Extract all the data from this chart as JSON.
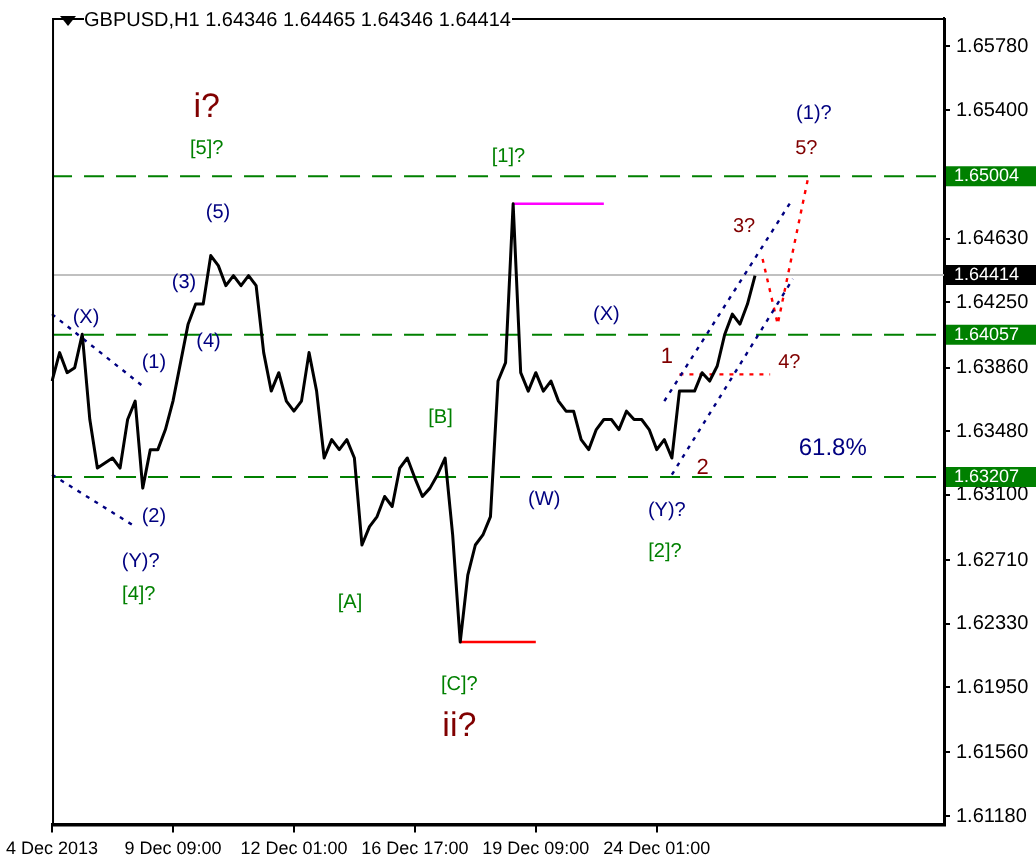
{
  "chart_data": {
    "type": "line",
    "title": "GBPUSD,H1 1.64346 1.64465 1.64346 1.64414",
    "categories": [
      "4 Dec 2013",
      null,
      null,
      null,
      null,
      null,
      null,
      null,
      null,
      null,
      null,
      null,
      null,
      null,
      null,
      null,
      "9 Dec 09:00",
      null,
      null,
      null,
      null,
      null,
      null,
      null,
      null,
      null,
      null,
      null,
      null,
      null,
      null,
      null,
      "12 Dec 01:00",
      null,
      null,
      null,
      null,
      null,
      null,
      null,
      null,
      null,
      null,
      null,
      null,
      null,
      null,
      null,
      "16 Dec 17:00",
      null,
      null,
      null,
      null,
      null,
      null,
      null,
      null,
      null,
      null,
      null,
      null,
      null,
      null,
      null,
      "19 Dec 09:00",
      null,
      null,
      null,
      null,
      null,
      null,
      null,
      null,
      null,
      null,
      null,
      null,
      null,
      null,
      null,
      "24 Dec 01:00",
      null,
      null,
      null,
      null,
      null,
      null,
      null,
      null,
      null,
      null,
      null,
      null,
      null,
      null,
      null,
      null,
      null,
      null,
      null,
      null,
      null,
      null,
      null,
      null,
      null,
      null,
      null,
      null,
      null,
      null,
      null,
      null,
      null,
      null,
      null,
      null,
      null,
      null
    ],
    "ylim": [
      1.6113,
      1.6595
    ],
    "yticks": [
      {
        "value": 1.6118,
        "label": "1.61180"
      },
      {
        "value": 1.6156,
        "label": "1.61560"
      },
      {
        "value": 1.6195,
        "label": "1.61950"
      },
      {
        "value": 1.6233,
        "label": "1.62330"
      },
      {
        "value": 1.6271,
        "label": "1.62710"
      },
      {
        "value": 1.631,
        "label": "1.63100"
      },
      {
        "value": 1.6348,
        "label": "1.63480"
      },
      {
        "value": 1.6386,
        "label": "1.63860"
      },
      {
        "value": 1.6425,
        "label": "1.64250"
      },
      {
        "value": 1.6463,
        "label": "1.64630"
      },
      {
        "value": 1.654,
        "label": "1.65400"
      },
      {
        "value": 1.6578,
        "label": "1.65780"
      }
    ],
    "grid": false,
    "legend": false,
    "series": [
      {
        "color": "#000000",
        "values": [
          1.6378,
          1.6395,
          1.6383,
          1.6386,
          1.6406,
          1.6355,
          1.6326,
          1.6329,
          1.6332,
          1.6326,
          1.6355,
          1.6366,
          1.6314,
          1.6337,
          1.6337,
          1.6349,
          1.6366,
          1.6389,
          1.6412,
          1.6424,
          1.6424,
          1.6453,
          1.6447,
          1.6435,
          1.6441,
          1.6435,
          1.6441,
          1.6435,
          1.6395,
          1.6372,
          1.6383,
          1.6366,
          1.636,
          1.6366,
          1.6395,
          1.6372,
          1.6332,
          1.6343,
          1.6337,
          1.6343,
          1.6332,
          1.628,
          1.6291,
          1.6297,
          1.6309,
          1.6303,
          1.6326,
          1.6332,
          1.632,
          1.6309,
          1.6314,
          1.6322,
          1.6332,
          1.6286,
          1.6222,
          1.6262,
          1.628,
          1.6286,
          1.6297,
          1.6378,
          1.6389,
          1.6484,
          1.6383,
          1.6372,
          1.6383,
          1.6372,
          1.6378,
          1.6366,
          1.636,
          1.636,
          1.6343,
          1.6337,
          1.6349,
          1.6355,
          1.6355,
          1.6349,
          1.636,
          1.6355,
          1.6355,
          1.6349,
          1.6337,
          1.6343,
          1.6332,
          1.6372,
          1.6372,
          1.6372,
          1.6383,
          1.6378,
          1.6387,
          1.6406,
          1.6418,
          1.6412,
          1.6424,
          1.6441,
          null,
          null,
          null,
          null,
          null,
          null,
          null,
          null,
          null,
          null,
          null,
          null,
          null,
          null,
          null,
          null,
          null,
          null,
          null,
          null,
          null,
          null,
          null,
          null,
          null
        ]
      },
      {
        "color": "#ff00ff",
        "values": [
          null,
          null,
          null,
          null,
          null,
          null,
          null,
          null,
          null,
          null,
          null,
          null,
          null,
          null,
          null,
          null,
          null,
          null,
          null,
          null,
          null,
          null,
          null,
          null,
          null,
          null,
          null,
          null,
          null,
          null,
          null,
          null,
          null,
          null,
          null,
          null,
          null,
          null,
          null,
          null,
          null,
          null,
          null,
          null,
          null,
          null,
          null,
          null,
          null,
          null,
          null,
          null,
          null,
          null,
          null,
          null,
          null,
          null,
          null,
          null,
          null,
          1.6484,
          null,
          null,
          null,
          null,
          null,
          null,
          null,
          null,
          null,
          null,
          null,
          1.6484,
          null,
          null,
          null,
          null,
          null,
          null,
          null,
          null,
          null,
          null,
          null,
          null,
          null,
          null,
          null,
          null,
          null,
          null,
          null,
          null,
          null,
          null,
          null,
          null,
          null,
          null,
          null,
          null,
          null,
          null,
          null,
          null,
          null,
          null,
          null,
          null,
          null,
          null,
          null,
          null,
          null,
          null,
          null,
          null,
          null
        ]
      },
      {
        "color": "#ff0000",
        "values": [
          null,
          null,
          null,
          null,
          null,
          null,
          null,
          null,
          null,
          null,
          null,
          null,
          null,
          null,
          null,
          null,
          null,
          null,
          null,
          null,
          null,
          null,
          null,
          null,
          null,
          null,
          null,
          null,
          null,
          null,
          null,
          null,
          null,
          null,
          null,
          null,
          null,
          null,
          null,
          null,
          null,
          null,
          null,
          null,
          null,
          null,
          null,
          null,
          null,
          null,
          null,
          null,
          null,
          null,
          1.6222,
          null,
          null,
          null,
          null,
          null,
          null,
          null,
          null,
          null,
          1.6222,
          null,
          null,
          null,
          null,
          null,
          null,
          null,
          null,
          null,
          null,
          null,
          null,
          null,
          null,
          null,
          null,
          null,
          null,
          null,
          null,
          null,
          null,
          null,
          null,
          null,
          null,
          null,
          null,
          null,
          null,
          null,
          null,
          null,
          null,
          null,
          null,
          null,
          null,
          null,
          null,
          null,
          null,
          null,
          null,
          null,
          null,
          null,
          null,
          null,
          null,
          null,
          null,
          null,
          null
        ]
      },
      {
        "color": "#000080",
        "line_style": "dotted",
        "values": [
          1.6418,
          null,
          null,
          null,
          null,
          null,
          null,
          null,
          null,
          null,
          null,
          null,
          1.6375,
          null,
          null,
          null,
          null,
          null,
          null,
          null,
          null,
          null,
          null,
          null,
          null,
          null,
          null,
          null,
          null,
          null,
          null,
          null,
          null,
          null,
          null,
          null,
          null,
          null,
          null,
          null,
          null,
          null,
          null,
          null,
          null,
          null,
          null,
          null,
          null,
          null,
          null,
          null,
          null,
          null,
          null,
          null,
          null,
          null,
          null,
          null,
          null,
          null,
          null,
          null,
          null,
          null,
          null,
          null,
          null,
          null,
          null,
          null,
          null,
          null,
          null,
          null,
          null,
          null,
          null,
          null,
          null,
          null,
          null,
          null,
          null,
          null,
          null,
          null,
          null,
          null,
          null,
          null,
          null,
          null,
          null,
          null,
          null,
          null,
          null,
          null,
          null,
          null,
          null,
          null,
          null,
          null,
          null,
          null,
          null,
          null,
          null,
          null,
          null,
          null,
          null,
          null,
          null,
          null,
          null
        ]
      },
      {
        "color": "#000080",
        "line_style": "dotted",
        "values": [
          1.6322,
          null,
          null,
          null,
          null,
          null,
          null,
          null,
          null,
          null,
          null,
          1.6291,
          null,
          null,
          null,
          null,
          null,
          null,
          null,
          null,
          null,
          null,
          null,
          null,
          null,
          null,
          null,
          null,
          null,
          null,
          null,
          null,
          null,
          null,
          null,
          null,
          null,
          null,
          null,
          null,
          null,
          null,
          null,
          null,
          null,
          null,
          null,
          null,
          null,
          null,
          null,
          null,
          null,
          null,
          null,
          null,
          null,
          null,
          null,
          null,
          null,
          null,
          null,
          null,
          null,
          null,
          null,
          null,
          null,
          null,
          null,
          null,
          null,
          null,
          null,
          null,
          null,
          null,
          null,
          null,
          null,
          null,
          null,
          null,
          null,
          null,
          null,
          null,
          null,
          null,
          null,
          null,
          null,
          null,
          null,
          null,
          null,
          null,
          null,
          null,
          null,
          null,
          null,
          null,
          null,
          null,
          null,
          null,
          null,
          null,
          null,
          null,
          null,
          null,
          null,
          null,
          null,
          null,
          null
        ]
      },
      {
        "color": "#000080",
        "line_style": "dotted",
        "values": [
          null,
          null,
          null,
          null,
          null,
          null,
          null,
          null,
          null,
          null,
          null,
          null,
          null,
          null,
          null,
          null,
          null,
          null,
          null,
          null,
          null,
          null,
          null,
          null,
          null,
          null,
          null,
          null,
          null,
          null,
          null,
          null,
          null,
          null,
          null,
          null,
          null,
          null,
          null,
          null,
          null,
          null,
          null,
          null,
          null,
          null,
          null,
          null,
          null,
          null,
          null,
          null,
          null,
          null,
          null,
          null,
          null,
          null,
          null,
          null,
          null,
          null,
          null,
          null,
          null,
          null,
          null,
          null,
          null,
          null,
          null,
          null,
          null,
          null,
          null,
          null,
          null,
          null,
          null,
          null,
          null,
          1.6366,
          null,
          null,
          null,
          null,
          null,
          null,
          null,
          null,
          null,
          null,
          null,
          null,
          null,
          null,
          null,
          null,
          1.6487,
          null,
          null,
          null,
          null,
          null,
          null,
          null,
          null,
          null,
          null,
          null,
          null,
          null,
          null,
          null,
          null,
          null,
          null,
          null,
          null
        ]
      },
      {
        "color": "#000080",
        "line_style": "dotted",
        "values": [
          null,
          null,
          null,
          null,
          null,
          null,
          null,
          null,
          null,
          null,
          null,
          null,
          null,
          null,
          null,
          null,
          null,
          null,
          null,
          null,
          null,
          null,
          null,
          null,
          null,
          null,
          null,
          null,
          null,
          null,
          null,
          null,
          null,
          null,
          null,
          null,
          null,
          null,
          null,
          null,
          null,
          null,
          null,
          null,
          null,
          null,
          null,
          null,
          null,
          null,
          null,
          null,
          null,
          null,
          null,
          null,
          null,
          null,
          null,
          null,
          null,
          null,
          null,
          null,
          null,
          null,
          null,
          null,
          null,
          null,
          null,
          null,
          null,
          null,
          null,
          null,
          null,
          null,
          null,
          null,
          null,
          null,
          1.6322,
          null,
          null,
          null,
          null,
          null,
          null,
          null,
          null,
          null,
          null,
          null,
          null,
          null,
          null,
          null,
          1.6439,
          null,
          null,
          null,
          null,
          null,
          null,
          null,
          null,
          null,
          null,
          null,
          null,
          null,
          null,
          null,
          null,
          null,
          null,
          null,
          null
        ]
      },
      {
        "color": "#ff0000",
        "line_style": "dotted",
        "values": [
          null,
          null,
          null,
          null,
          null,
          null,
          null,
          null,
          null,
          null,
          null,
          null,
          null,
          null,
          null,
          null,
          null,
          null,
          null,
          null,
          null,
          null,
          null,
          null,
          null,
          null,
          null,
          null,
          null,
          null,
          null,
          null,
          null,
          null,
          null,
          null,
          null,
          null,
          null,
          null,
          null,
          null,
          null,
          null,
          null,
          null,
          null,
          null,
          null,
          null,
          null,
          null,
          null,
          null,
          null,
          null,
          null,
          null,
          null,
          null,
          null,
          null,
          null,
          null,
          null,
          null,
          null,
          null,
          null,
          null,
          null,
          null,
          null,
          null,
          null,
          null,
          null,
          null,
          null,
          null,
          null,
          null,
          null,
          1.6382,
          null,
          null,
          null,
          null,
          null,
          null,
          null,
          null,
          null,
          null,
          null,
          1.6382,
          null,
          null,
          null,
          null,
          null,
          null,
          null,
          null,
          null,
          null,
          null,
          null,
          null,
          null,
          null,
          null,
          null,
          null,
          null,
          null,
          null,
          null,
          null
        ]
      },
      {
        "color": "#ff0000",
        "line_style": "dotted",
        "values": [
          null,
          null,
          null,
          null,
          null,
          null,
          null,
          null,
          null,
          null,
          null,
          null,
          null,
          null,
          null,
          null,
          null,
          null,
          null,
          null,
          null,
          null,
          null,
          null,
          null,
          null,
          null,
          null,
          null,
          null,
          null,
          null,
          null,
          null,
          null,
          null,
          null,
          null,
          null,
          null,
          null,
          null,
          null,
          null,
          null,
          null,
          null,
          null,
          null,
          null,
          null,
          null,
          null,
          null,
          null,
          null,
          null,
          null,
          null,
          null,
          null,
          null,
          null,
          null,
          null,
          null,
          null,
          null,
          null,
          null,
          null,
          null,
          null,
          null,
          null,
          null,
          null,
          null,
          null,
          null,
          null,
          null,
          null,
          null,
          null,
          null,
          null,
          null,
          null,
          null,
          null,
          null,
          null,
          null,
          1.6451,
          null,
          1.6412,
          null,
          null,
          null,
          1.6499,
          null,
          null,
          null,
          null,
          null,
          null,
          null,
          null,
          null,
          null,
          null,
          null,
          null,
          null,
          null,
          null,
          null,
          null
        ]
      }
    ],
    "ref_lines": [
      {
        "axis": "y",
        "value": 1.65004,
        "label": "1.65004",
        "color": "#008000",
        "line_style": "dashed"
      },
      {
        "axis": "y",
        "value": 1.64414,
        "label": "1.64414",
        "color": "#c0c0c0",
        "line_style": "solid"
      },
      {
        "axis": "y",
        "value": 1.64057,
        "label": "1.64057",
        "color": "#008000",
        "line_style": "dashed"
      },
      {
        "axis": "y",
        "value": 1.63207,
        "label": "1.63207",
        "color": "#008000",
        "line_style": "dashed"
      }
    ],
    "annotations": [
      "i?",
      "[5]?",
      "(5)",
      "(3)",
      "(4)",
      "(X)",
      "(1)",
      "(2)",
      "(Y)?",
      "[4]?",
      "[1]?",
      "[B]",
      "[A]",
      "[C]?",
      "ii?",
      "(X)",
      "(W)",
      "(Y)?",
      "[2]?",
      "1",
      "2",
      "3?",
      "4?",
      "5?",
      "(1)?",
      "61.8%"
    ]
  }
}
